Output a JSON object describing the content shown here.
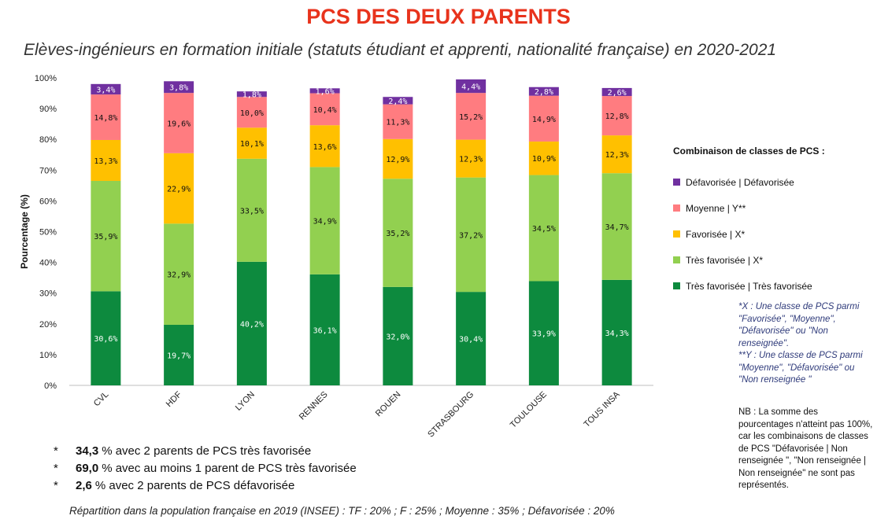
{
  "title": "PCS DES DEUX PARENTS",
  "subtitle": "Elèves-ingénieurs en formation initiale (statuts étudiant et apprenti, nationalité française) en 2020-2021",
  "chart_data": {
    "type": "bar",
    "stacked": true,
    "title": "PCS DES DEUX PARENTS",
    "ylabel": "Pourcentage (%)",
    "xlabel": "",
    "ylim": [
      0,
      100
    ],
    "yticks": [
      "0%",
      "10%",
      "20%",
      "30%",
      "40%",
      "50%",
      "60%",
      "70%",
      "80%",
      "90%",
      "100%"
    ],
    "grid": false,
    "legend_position": "right",
    "categories": [
      "CVL",
      "HDF",
      "LYON",
      "RENNES",
      "ROUEN",
      "STRASBOURG",
      "TOULOUSE",
      "TOUS INSA"
    ],
    "series": [
      {
        "name": "Très favorisée | Très favorisée",
        "color": "#0d8a3e",
        "values": [
          30.6,
          19.7,
          40.2,
          36.1,
          32.0,
          30.4,
          33.9,
          34.3
        ],
        "labels": [
          "30,6%",
          "19,7%",
          "40,2%",
          "36,1%",
          "32,0%",
          "30,4%",
          "33,9%",
          "34,3%"
        ]
      },
      {
        "name": "Très favorisée | X*",
        "color": "#92d050",
        "values": [
          35.9,
          32.9,
          33.5,
          34.9,
          35.2,
          37.2,
          34.5,
          34.7
        ],
        "labels": [
          "35,9%",
          "32,9%",
          "33,5%",
          "34,9%",
          "35,2%",
          "37,2%",
          "34,5%",
          "34,7%"
        ]
      },
      {
        "name": "Favorisée | X*",
        "color": "#ffc000",
        "values": [
          13.3,
          22.9,
          10.1,
          13.6,
          12.9,
          12.3,
          10.9,
          12.3
        ],
        "labels": [
          "13,3%",
          "22,9%",
          "10,1%",
          "13,6%",
          "12,9%",
          "12,3%",
          "10,9%",
          "12,3%"
        ]
      },
      {
        "name": "Moyenne | Y**",
        "color": "#ff7c80",
        "values": [
          14.8,
          19.6,
          10.0,
          10.4,
          11.3,
          15.2,
          14.9,
          12.8
        ],
        "labels": [
          "14,8%",
          "19,6%",
          "10,0%",
          "10,4%",
          "11,3%",
          "15,2%",
          "14,9%",
          "12,8%"
        ]
      },
      {
        "name": "Défavorisée | Défavorisée",
        "color": "#7030a0",
        "values": [
          3.4,
          3.8,
          1.8,
          1.6,
          2.4,
          4.4,
          2.8,
          2.6
        ],
        "labels": [
          "3,4%",
          "3,8%",
          "1,8%",
          "1,6%",
          "2,4%",
          "4,4%",
          "2,8%",
          "2,6%"
        ]
      }
    ]
  },
  "legend": {
    "title": "Combinaison  de classes de PCS :",
    "items": [
      {
        "label": "Défavorisée | Défavorisée",
        "color": "#7030a0"
      },
      {
        "label": "Moyenne | Y**",
        "color": "#ff7c80"
      },
      {
        "label": "Favorisée | X*",
        "color": "#ffc000"
      },
      {
        "label": "Très favorisée | X*",
        "color": "#92d050"
      },
      {
        "label": "Très favorisée | Très favorisée",
        "color": "#0d8a3e"
      }
    ]
  },
  "notes": {
    "x_note": "*X : Une classe de PCS parmi \"Favorisée\", \"Moyenne\", \"Défavorisée\" ou \"Non renseignée\".",
    "y_note": "**Y : Une classe de PCS parmi \"Moyenne\", \"Défavorisée\" ou \"Non renseignée \"",
    "nb": "NB : La somme des pourcentages n'atteint pas 100%, car les combinaisons de classes de PCS \"Défavorisée | Non renseignée \",  \"Non renseignée | Non renseignée\" ne sont pas représentés."
  },
  "stats": [
    {
      "bullet": "*",
      "value": "34,3",
      "text": "% avec 2 parents de PCS très favorisée"
    },
    {
      "bullet": "*",
      "value": "69,0",
      "text": "% avec au moins 1 parent de PCS très favorisée"
    },
    {
      "bullet": "*",
      "value": "2,6",
      "text": "% avec 2 parents de PCS défavorisée"
    }
  ],
  "footnote": "Répartition dans la population française en 2019 (INSEE) : TF : 20% ; F : 25% ; Moyenne : 35% ; Défavorisée : 20%"
}
